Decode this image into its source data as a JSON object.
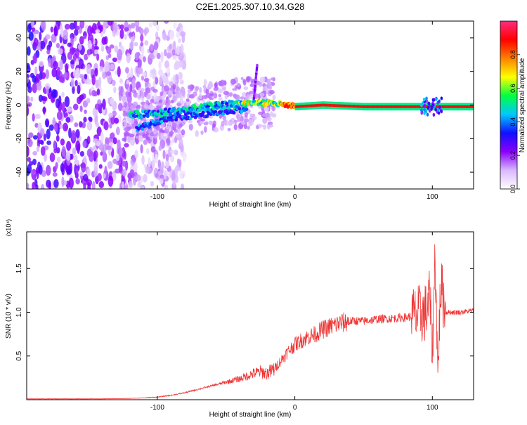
{
  "title": "C2E1.2025.307.10.34.G28",
  "chart_data": [
    {
      "type": "heatmap",
      "name": "spectrogram",
      "xlabel": "Height of straight line (km)",
      "ylabel": "Frequency (Hz)",
      "xlim": [
        -195,
        130
      ],
      "ylim": [
        -50,
        50
      ],
      "xticks": [
        -100,
        0,
        100
      ],
      "yticks": [
        -40,
        -20,
        0,
        20,
        40
      ],
      "colorbar": {
        "label": "Normalized spectral amplitude",
        "range": [
          0,
          1
        ],
        "ticks": [
          "0.0",
          "0.2",
          "0.4",
          "0.6",
          "0.8"
        ],
        "tick_values": [
          0,
          0.2,
          0.4,
          0.6,
          0.8
        ],
        "colors": [
          "#ffffff",
          "#d9b8ff",
          "#8a00ff",
          "#1010ff",
          "#00c8ff",
          "#00ff40",
          "#ffff00",
          "#ff8000",
          "#ff0000",
          "#ff2d80"
        ]
      },
      "features": {
        "noise_region_x": [
          -195,
          -95
        ],
        "carrier_track": [
          [
            -120,
            -6
          ],
          [
            -100,
            -5
          ],
          [
            -80,
            -3
          ],
          [
            -60,
            -1
          ],
          [
            -40,
            1
          ],
          [
            -20,
            1.5
          ],
          [
            0,
            -1
          ],
          [
            20,
            0
          ],
          [
            50,
            -1
          ],
          [
            80,
            -1
          ],
          [
            100,
            -1
          ],
          [
            130,
            -1
          ]
        ],
        "secondary_track": [
          [
            -115,
            -14
          ],
          [
            -95,
            -9
          ],
          [
            -70,
            -6
          ],
          [
            -50,
            -4
          ],
          [
            -35,
            -2
          ]
        ],
        "spike": {
          "x": -30,
          "f_range": [
            2,
            24
          ]
        }
      }
    },
    {
      "type": "line",
      "name": "snr",
      "xlabel": "Height of straight line (km)",
      "ylabel": "SNR (10 * v/v)",
      "multiplier": "(x10⁴)",
      "xlim": [
        -195,
        130
      ],
      "ylim": [
        0,
        1.92
      ],
      "xticks": [
        -100,
        0,
        100
      ],
      "yticks": [
        0.5,
        1.0,
        1.5
      ],
      "ytick_labels": [
        "0.5",
        "1.0",
        "1.5"
      ],
      "color": "#ee3333",
      "series": [
        {
          "name": "SNR",
          "x": [
            -195,
            -180,
            -160,
            -140,
            -120,
            -110,
            -100,
            -90,
            -80,
            -70,
            -60,
            -50,
            -40,
            -35,
            -30,
            -25,
            -20,
            -15,
            -10,
            -5,
            0,
            5,
            10,
            15,
            20,
            30,
            40,
            50,
            60,
            70,
            80,
            88,
            92,
            96,
            98,
            100,
            102,
            104,
            106,
            110,
            120,
            130
          ],
          "y": [
            0.01,
            0.01,
            0.01,
            0.01,
            0.015,
            0.02,
            0.03,
            0.05,
            0.08,
            0.12,
            0.16,
            0.2,
            0.24,
            0.27,
            0.3,
            0.32,
            0.3,
            0.35,
            0.45,
            0.55,
            0.63,
            0.68,
            0.72,
            0.75,
            0.8,
            0.86,
            0.9,
            0.9,
            0.92,
            0.93,
            0.94,
            0.96,
            0.98,
            1.0,
            1.2,
            0.5,
            1.7,
            0.3,
            1.3,
            1.0,
            1.0,
            1.02
          ]
        }
      ]
    }
  ]
}
